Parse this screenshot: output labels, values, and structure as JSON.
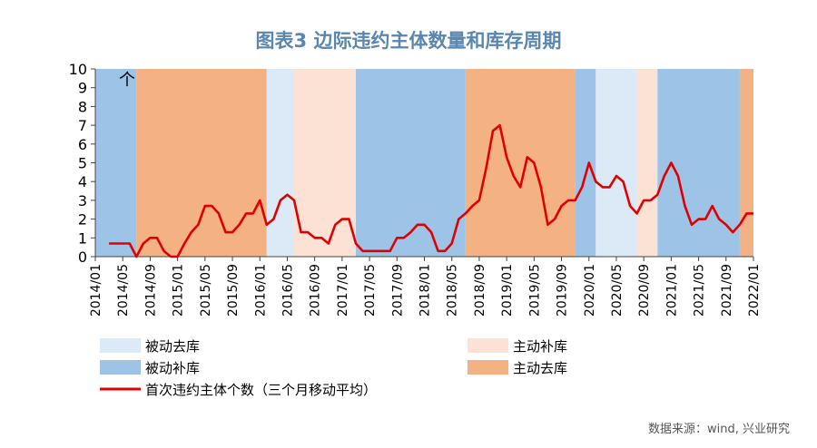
{
  "title": "图表3  边际违约主体数量和库存周期",
  "source": "数据来源：wind, 兴业研究",
  "chart_data": {
    "type": "line",
    "unit_label": "个",
    "ylim": [
      0,
      10
    ],
    "y_ticks": [
      "0",
      "1",
      "2",
      "3",
      "4",
      "5",
      "6",
      "7",
      "8",
      "9",
      "10"
    ],
    "x_ticks": [
      "2014/01",
      "2014/05",
      "2014/09",
      "2015/01",
      "2015/05",
      "2015/09",
      "2016/01",
      "2016/05",
      "2016/09",
      "2017/01",
      "2017/05",
      "2017/09",
      "2018/01",
      "2018/05",
      "2018/09",
      "2019/01",
      "2019/05",
      "2019/09",
      "2020/01",
      "2020/05",
      "2020/09",
      "2021/01",
      "2021/05",
      "2021/09",
      "2022/01"
    ],
    "x_range": [
      "2014/01",
      "2022/01"
    ],
    "grid": false,
    "colors": {
      "被动去库": "#dce9f6",
      "主动补库": "#fbe2d5",
      "被动补库": "#9dc3e6",
      "主动去库": "#f4b183",
      "line": "#e00000"
    },
    "phases": [
      {
        "start": "2014/01",
        "end": "2014/07",
        "type": "被动补库"
      },
      {
        "start": "2014/07",
        "end": "2016/02",
        "type": "主动去库"
      },
      {
        "start": "2016/02",
        "end": "2016/06",
        "type": "被动去库"
      },
      {
        "start": "2016/06",
        "end": "2017/03",
        "type": "主动补库"
      },
      {
        "start": "2017/03",
        "end": "2018/07",
        "type": "被动补库"
      },
      {
        "start": "2018/07",
        "end": "2019/11",
        "type": "主动去库"
      },
      {
        "start": "2019/11",
        "end": "2020/02",
        "type": "被动补库"
      },
      {
        "start": "2020/02",
        "end": "2020/08",
        "type": "被动去库"
      },
      {
        "start": "2020/08",
        "end": "2020/11",
        "type": "主动补库"
      },
      {
        "start": "2020/11",
        "end": "2021/11",
        "type": "被动补库"
      },
      {
        "start": "2021/11",
        "end": "2022/01",
        "type": "主动去库"
      }
    ],
    "series": [
      {
        "name": "首次违约主体个数（三个月移动平均）",
        "points": [
          [
            "2014/03",
            0.7
          ],
          [
            "2014/04",
            0.7
          ],
          [
            "2014/05",
            0.7
          ],
          [
            "2014/06",
            0.7
          ],
          [
            "2014/07",
            0.0
          ],
          [
            "2014/08",
            0.7
          ],
          [
            "2014/09",
            1.0
          ],
          [
            "2014/10",
            1.0
          ],
          [
            "2014/11",
            0.3
          ],
          [
            "2014/12",
            0.0
          ],
          [
            "2015/01",
            0.0
          ],
          [
            "2015/02",
            0.7
          ],
          [
            "2015/03",
            1.3
          ],
          [
            "2015/04",
            1.7
          ],
          [
            "2015/05",
            2.7
          ],
          [
            "2015/06",
            2.7
          ],
          [
            "2015/07",
            2.3
          ],
          [
            "2015/08",
            1.3
          ],
          [
            "2015/09",
            1.3
          ],
          [
            "2015/10",
            1.7
          ],
          [
            "2015/11",
            2.3
          ],
          [
            "2015/12",
            2.3
          ],
          [
            "2016/01",
            3.0
          ],
          [
            "2016/02",
            1.7
          ],
          [
            "2016/03",
            2.0
          ],
          [
            "2016/04",
            3.0
          ],
          [
            "2016/05",
            3.3
          ],
          [
            "2016/06",
            3.0
          ],
          [
            "2016/07",
            1.3
          ],
          [
            "2016/08",
            1.3
          ],
          [
            "2016/09",
            1.0
          ],
          [
            "2016/10",
            1.0
          ],
          [
            "2016/11",
            0.7
          ],
          [
            "2016/12",
            1.7
          ],
          [
            "2017/01",
            2.0
          ],
          [
            "2017/02",
            2.0
          ],
          [
            "2017/03",
            0.7
          ],
          [
            "2017/04",
            0.3
          ],
          [
            "2017/05",
            0.3
          ],
          [
            "2017/06",
            0.3
          ],
          [
            "2017/07",
            0.3
          ],
          [
            "2017/08",
            0.3
          ],
          [
            "2017/09",
            1.0
          ],
          [
            "2017/10",
            1.0
          ],
          [
            "2017/11",
            1.3
          ],
          [
            "2017/12",
            1.7
          ],
          [
            "2018/01",
            1.7
          ],
          [
            "2018/02",
            1.3
          ],
          [
            "2018/03",
            0.3
          ],
          [
            "2018/04",
            0.3
          ],
          [
            "2018/05",
            0.7
          ],
          [
            "2018/06",
            2.0
          ],
          [
            "2018/07",
            2.3
          ],
          [
            "2018/08",
            2.7
          ],
          [
            "2018/09",
            3.0
          ],
          [
            "2018/10",
            4.7
          ],
          [
            "2018/11",
            6.7
          ],
          [
            "2018/12",
            7.0
          ],
          [
            "2019/01",
            5.3
          ],
          [
            "2019/02",
            4.3
          ],
          [
            "2019/03",
            3.7
          ],
          [
            "2019/04",
            5.3
          ],
          [
            "2019/05",
            5.0
          ],
          [
            "2019/06",
            3.7
          ],
          [
            "2019/07",
            1.7
          ],
          [
            "2019/08",
            2.0
          ],
          [
            "2019/09",
            2.7
          ],
          [
            "2019/10",
            3.0
          ],
          [
            "2019/11",
            3.0
          ],
          [
            "2019/12",
            3.7
          ],
          [
            "2020/01",
            5.0
          ],
          [
            "2020/02",
            4.0
          ],
          [
            "2020/03",
            3.7
          ],
          [
            "2020/04",
            3.7
          ],
          [
            "2020/05",
            4.3
          ],
          [
            "2020/06",
            4.0
          ],
          [
            "2020/07",
            2.7
          ],
          [
            "2020/08",
            2.3
          ],
          [
            "2020/09",
            3.0
          ],
          [
            "2020/10",
            3.0
          ],
          [
            "2020/11",
            3.3
          ],
          [
            "2020/12",
            4.3
          ],
          [
            "2021/01",
            5.0
          ],
          [
            "2021/02",
            4.3
          ],
          [
            "2021/03",
            2.7
          ],
          [
            "2021/04",
            1.7
          ],
          [
            "2021/05",
            2.0
          ],
          [
            "2021/06",
            2.0
          ],
          [
            "2021/07",
            2.7
          ],
          [
            "2021/08",
            2.0
          ],
          [
            "2021/09",
            1.7
          ],
          [
            "2021/10",
            1.3
          ],
          [
            "2021/11",
            1.7
          ],
          [
            "2021/12",
            2.3
          ],
          [
            "2022/01",
            2.3
          ]
        ]
      }
    ],
    "legend": [
      {
        "label": "被动去库",
        "type": "被动去库"
      },
      {
        "label": "主动补库",
        "type": "主动补库"
      },
      {
        "label": "被动补库",
        "type": "被动补库"
      },
      {
        "label": "主动去库",
        "type": "主动去库"
      },
      {
        "label": "首次违约主体个数（三个月移动平均）",
        "type": "line"
      }
    ]
  }
}
